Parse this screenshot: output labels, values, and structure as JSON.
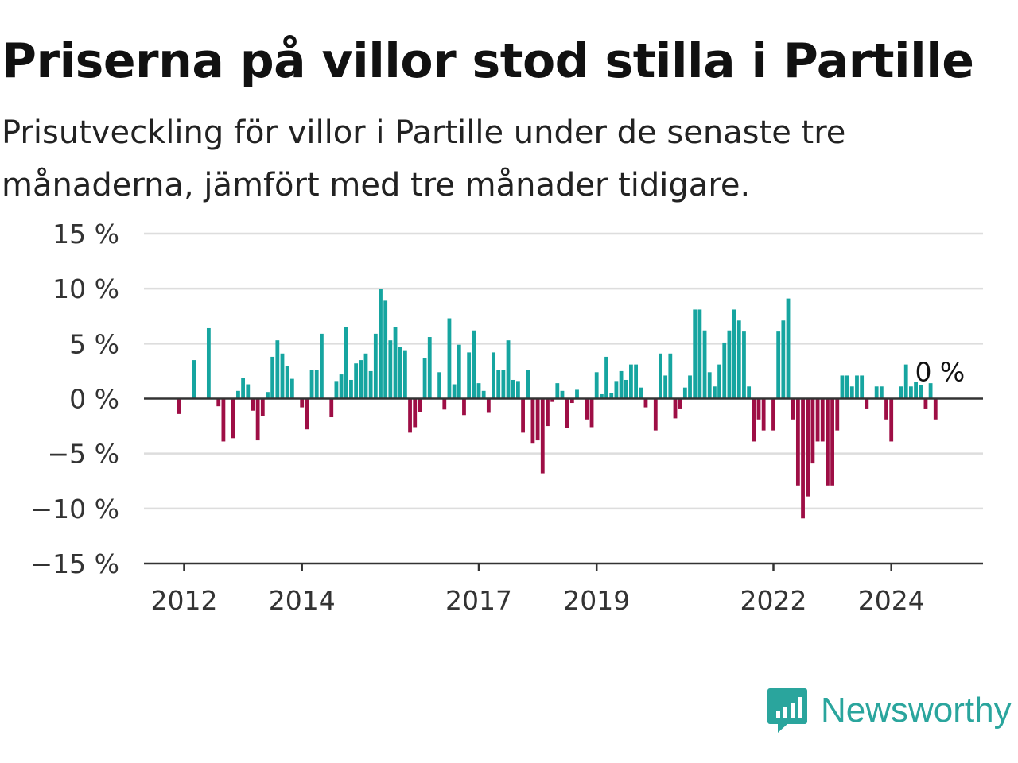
{
  "title": "Priserna på villor stod stilla i Partille",
  "subtitle": "Prisutveckling för villor i Partille under de senaste tre månaderna, jämfört med tre månader tidigare.",
  "colors": {
    "positive": "#16a5a0",
    "negative": "#9e0e45",
    "grid": "#dddddd",
    "axis": "#333333"
  },
  "brand": {
    "name": "Newsworthy",
    "icon": "newsworthy-logo-icon"
  },
  "chart_data": {
    "type": "bar",
    "y_unit": "%",
    "ylim": [
      -15,
      15
    ],
    "y_ticks": [
      15,
      10,
      5,
      0,
      -5,
      -10,
      -15
    ],
    "y_tick_labels": [
      "15 %",
      "10 %",
      "5 %",
      "0 %",
      "−5 %",
      "−10 %",
      "−15 %"
    ],
    "x_ticks": [
      "2012",
      "2014",
      "2017",
      "2019",
      "2022",
      "2024"
    ],
    "grid": true,
    "last_value_label": "0 %",
    "series": [
      {
        "frequency": "monthly",
        "start": "2011-10",
        "end": "2025-01",
        "values": [
          0,
          0,
          -1.4,
          0,
          0,
          3.5,
          0,
          0,
          6.4,
          0,
          -0.7,
          -3.9,
          0,
          -3.6,
          0.7,
          1.9,
          1.3,
          -1.1,
          -3.8,
          -1.6,
          0.6,
          3.8,
          5.3,
          4.1,
          3.0,
          1.8,
          0,
          -0.8,
          -2.8,
          2.6,
          2.6,
          5.9,
          0,
          -1.7,
          1.6,
          2.2,
          6.5,
          1.7,
          3.2,
          3.5,
          4.1,
          2.5,
          5.9,
          10.0,
          8.9,
          5.3,
          6.5,
          4.7,
          4.4,
          -3.1,
          -2.6,
          -1.2,
          3.7,
          5.6,
          0,
          2.4,
          -1.0,
          7.3,
          1.3,
          4.9,
          -1.5,
          4.2,
          6.2,
          1.4,
          0.7,
          -1.3,
          4.2,
          2.6,
          2.6,
          5.3,
          1.7,
          1.6,
          -3.1,
          2.6,
          -4.1,
          -3.8,
          -6.8,
          -2.5,
          -0.3,
          1.4,
          0.7,
          -2.7,
          -0.4,
          0.8,
          0,
          -1.9,
          -2.6,
          2.4,
          0.4,
          3.8,
          0.5,
          1.6,
          2.5,
          1.7,
          3.1,
          3.1,
          1.0,
          -0.8,
          0,
          -2.9,
          4.1,
          2.1,
          4.1,
          -1.8,
          -0.9,
          1.0,
          2.1,
          8.1,
          8.1,
          6.2,
          2.4,
          1.1,
          3.1,
          5.1,
          6.2,
          8.1,
          7.1,
          6.1,
          1.1,
          -3.9,
          -1.9,
          -2.9,
          0,
          -2.9,
          6.1,
          7.1,
          9.1,
          -1.9,
          -7.9,
          -10.9,
          -8.9,
          -5.9,
          -3.9,
          -3.9,
          -7.9,
          -7.9,
          -2.9,
          2.1,
          2.1,
          1.1,
          2.1,
          2.1,
          -0.9,
          0,
          1.1,
          1.1,
          -1.9,
          -3.9,
          0,
          1.1,
          3.1,
          1.1,
          1.5,
          1.2,
          -0.9,
          1.4,
          -1.9,
          0
        ]
      }
    ]
  }
}
